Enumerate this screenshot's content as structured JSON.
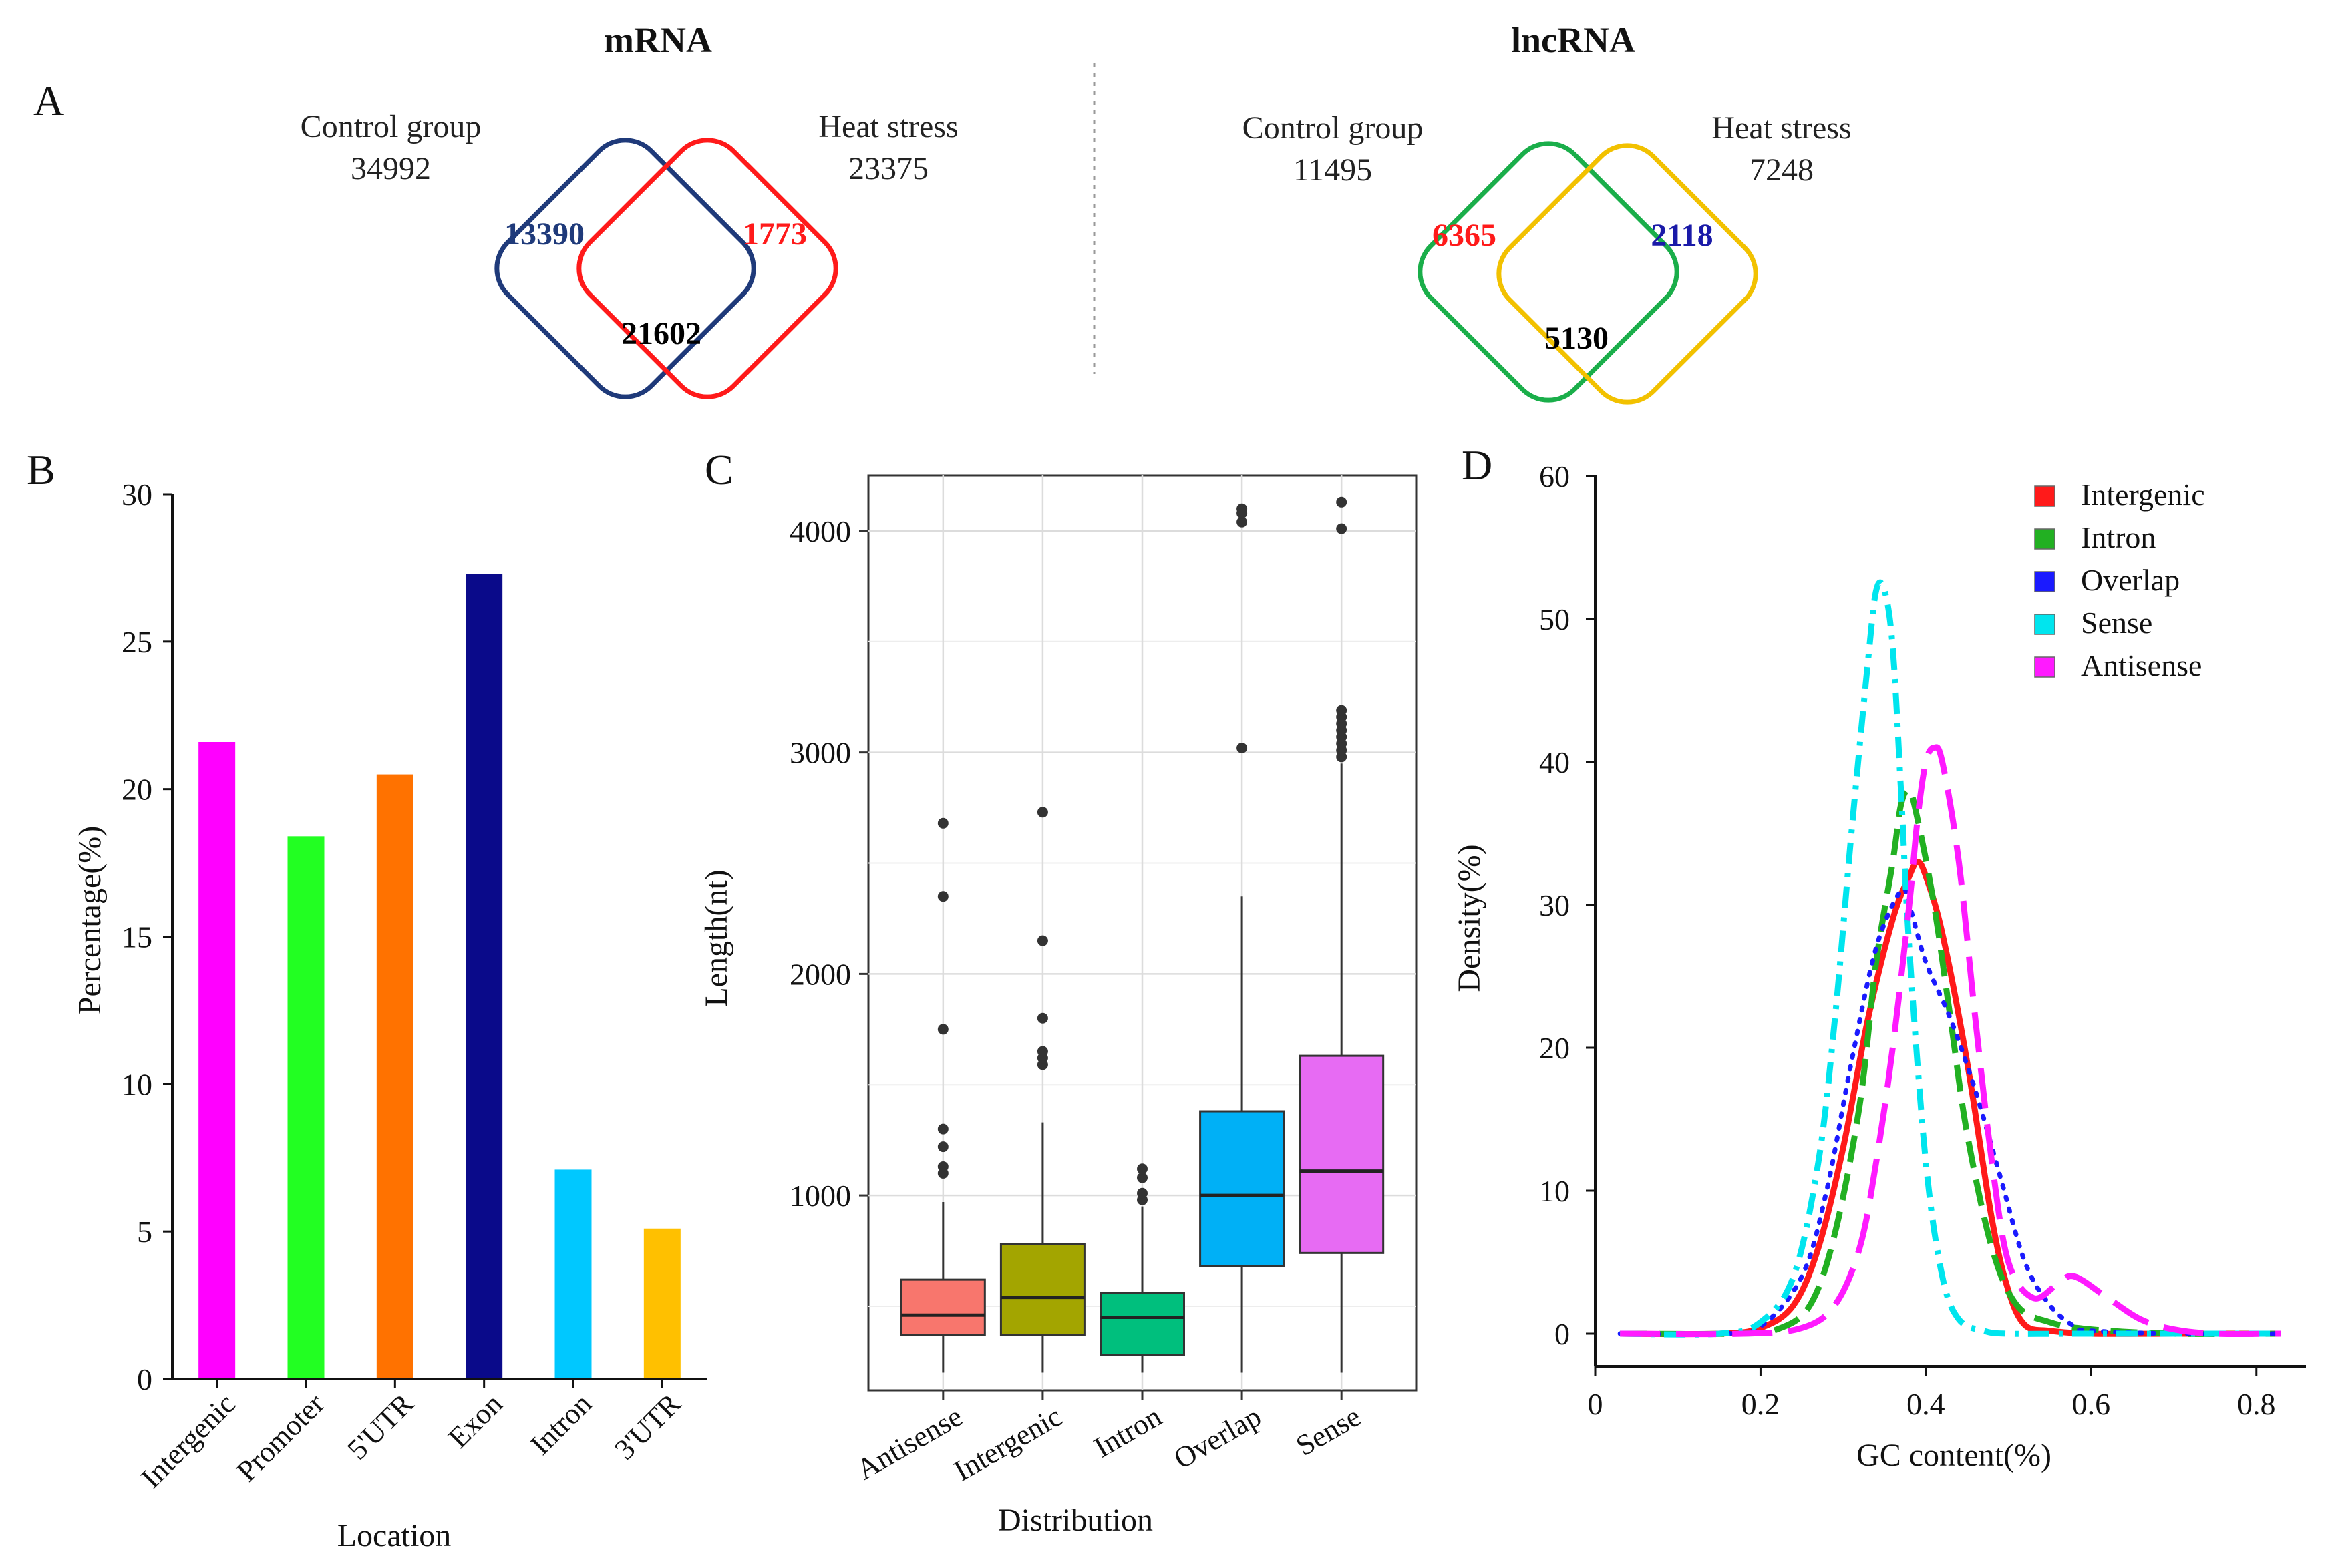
{
  "chart_data": [
    {
      "panel": "A",
      "type": "venn",
      "panel_label": "A",
      "title": "mRNA",
      "sets": [
        {
          "name": "Control group",
          "total": "34992",
          "color": "#1f3a7a"
        },
        {
          "name": "Heat stress",
          "total": "23375",
          "color": "#ff1a1a"
        }
      ],
      "regions": {
        "left_only": "13390",
        "right_only": "1773",
        "intersection": "21602"
      },
      "region_colors": {
        "left_only": "#1f3a7a",
        "right_only": "#ff1a1a",
        "intersection": "#000000"
      }
    },
    {
      "panel": "A2",
      "type": "venn",
      "title": "lncRNA",
      "sets": [
        {
          "name": "Control group",
          "total": "11495",
          "color": "#1aae4a"
        },
        {
          "name": "Heat stress",
          "total": "7248",
          "color": "#f2c100"
        }
      ],
      "regions": {
        "left_only": "6365",
        "right_only": "2118",
        "intersection": "5130"
      },
      "region_colors": {
        "left_only": "#ff1a1a",
        "right_only": "#1a1aa8",
        "intersection": "#000000"
      }
    },
    {
      "panel": "B",
      "type": "bar",
      "panel_label": "B",
      "categories": [
        "Intergenic",
        "Promoter",
        "5'UTR",
        "Exon",
        "Intron",
        "3'UTR"
      ],
      "values": [
        21.6,
        18.4,
        20.5,
        27.3,
        7.1,
        5.1
      ],
      "colors": [
        "#ff00ff",
        "#22ff22",
        "#ff7200",
        "#0a0a8a",
        "#00c8ff",
        "#ffc000"
      ],
      "xlabel": "Location",
      "ylabel": "Percentage(%)",
      "ylim": [
        0,
        30
      ],
      "yticks": [
        0,
        5,
        10,
        15,
        20,
        25,
        30
      ]
    },
    {
      "panel": "C",
      "type": "box",
      "panel_label": "C",
      "categories": [
        "Antisense",
        "Intergenic",
        "Intron",
        "Overlap",
        "Sense"
      ],
      "colors": [
        "#f8766d",
        "#a3a500",
        "#00bf7d",
        "#00b0f6",
        "#e76bf3"
      ],
      "boxes": [
        {
          "min": 200,
          "q1": 370,
          "median": 460,
          "q3": 620,
          "max": 970,
          "outliers": [
            1100,
            1130,
            1220,
            1300,
            1750,
            2350,
            2680
          ]
        },
        {
          "min": 200,
          "q1": 370,
          "median": 540,
          "q3": 780,
          "max": 1330,
          "outliers": [
            1590,
            1620,
            1650,
            1800,
            2150,
            2730
          ]
        },
        {
          "min": 200,
          "q1": 280,
          "median": 450,
          "q3": 560,
          "max": 950,
          "outliers": [
            980,
            1010,
            1080,
            1120
          ]
        },
        {
          "min": 200,
          "q1": 680,
          "median": 1000,
          "q3": 1380,
          "max": 2350,
          "outliers": [
            3020,
            4040,
            4080,
            4100
          ]
        },
        {
          "min": 200,
          "q1": 740,
          "median": 1110,
          "q3": 1630,
          "max": 2950,
          "outliers": [
            2980,
            3010,
            3040,
            3070,
            3100,
            3130,
            3160,
            3190,
            4010,
            4130
          ]
        }
      ],
      "xlabel": "Distribution",
      "ylabel": "Length(nt)",
      "ylim": [
        120,
        4250
      ],
      "yticks": [
        1000,
        2000,
        3000,
        4000
      ]
    },
    {
      "panel": "D",
      "type": "line",
      "panel_label": "D",
      "xlabel": "GC content(%)",
      "ylabel": "Density(%)",
      "xlim": [
        0,
        0.86
      ],
      "ylim": [
        0,
        60
      ],
      "xticks": [
        0,
        0.2,
        0.4,
        0.6,
        0.8
      ],
      "xtick_labels": [
        "0",
        "0.2",
        "0.4",
        "0.6",
        "0.8"
      ],
      "yticks": [
        0,
        10,
        20,
        30,
        40,
        50,
        60
      ],
      "legend_position": "top-right",
      "series": [
        {
          "name": "Intergenic",
          "color": "#ff1a1a",
          "style": "solid",
          "x": [
            0.03,
            0.15,
            0.2,
            0.24,
            0.27,
            0.3,
            0.33,
            0.36,
            0.38,
            0.39,
            0.4,
            0.42,
            0.45,
            0.48,
            0.5,
            0.52,
            0.55,
            0.6,
            0.7,
            0.83
          ],
          "y": [
            0,
            0,
            0.4,
            2,
            6,
            13,
            22,
            29,
            32,
            33,
            32,
            28,
            19,
            8,
            3,
            0.6,
            0.2,
            0,
            0,
            0
          ]
        },
        {
          "name": "Intron",
          "color": "#22b022",
          "style": "dashed",
          "x": [
            0.03,
            0.17,
            0.22,
            0.26,
            0.29,
            0.32,
            0.34,
            0.36,
            0.37,
            0.38,
            0.39,
            0.41,
            0.43,
            0.45,
            0.48,
            0.51,
            0.55,
            0.6,
            0.7,
            0.83
          ],
          "y": [
            0,
            0,
            0.3,
            2,
            7,
            16,
            26,
            33,
            37,
            38,
            36,
            30,
            22,
            14,
            6,
            2,
            0.8,
            0.3,
            0,
            0
          ]
        },
        {
          "name": "Overlap",
          "color": "#1a1aff",
          "style": "dotted",
          "x": [
            0.03,
            0.15,
            0.2,
            0.25,
            0.28,
            0.31,
            0.34,
            0.37,
            0.38,
            0.4,
            0.43,
            0.46,
            0.49,
            0.52,
            0.55,
            0.58,
            0.6,
            0.7,
            0.83
          ],
          "y": [
            0,
            0,
            0.5,
            4,
            10,
            19,
            27,
            31,
            30,
            26,
            22,
            17,
            11,
            5,
            2,
            0.5,
            0.2,
            0,
            0
          ]
        },
        {
          "name": "Sense",
          "color": "#00e5ee",
          "style": "dashdot",
          "x": [
            0.03,
            0.15,
            0.2,
            0.24,
            0.27,
            0.29,
            0.31,
            0.33,
            0.34,
            0.35,
            0.36,
            0.37,
            0.38,
            0.4,
            0.42,
            0.44,
            0.47,
            0.5,
            0.6,
            0.83
          ],
          "y": [
            0,
            0,
            0.8,
            4,
            12,
            22,
            35,
            47,
            52,
            52,
            48,
            38,
            27,
            12,
            4,
            1,
            0.2,
            0,
            0,
            0
          ]
        },
        {
          "name": "Antisense",
          "color": "#ff1aff",
          "style": "longdash",
          "x": [
            0.03,
            0.18,
            0.25,
            0.29,
            0.32,
            0.34,
            0.36,
            0.38,
            0.39,
            0.4,
            0.41,
            0.42,
            0.44,
            0.46,
            0.48,
            0.5,
            0.53,
            0.56,
            0.58,
            0.62,
            0.66,
            0.7,
            0.75,
            0.83
          ],
          "y": [
            0,
            0,
            0.4,
            2,
            6,
            12,
            20,
            30,
            36,
            40,
            41,
            40,
            33,
            22,
            12,
            5,
            2.5,
            3.5,
            4,
            2.5,
            1,
            0.3,
            0,
            0
          ]
        }
      ]
    }
  ]
}
